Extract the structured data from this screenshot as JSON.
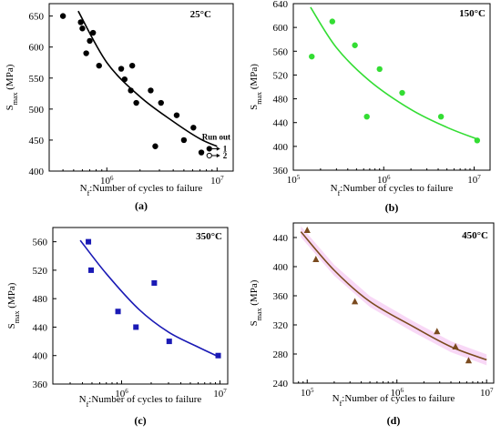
{
  "chart_data": [
    {
      "type": "scatter",
      "temperature": "25°C",
      "panel_label": "(a)",
      "xlabel": "N_f:Number of cycles to failure",
      "ylabel": "S_max (MPa)",
      "x_scale": "log",
      "xlim": [
        300000,
        14000000
      ],
      "ylim": [
        400,
        670
      ],
      "yticks": [
        400,
        450,
        500,
        550,
        600,
        650
      ],
      "xticks": [
        {
          "value": 1000000,
          "label": "10^6"
        },
        {
          "value": 10000000,
          "label": "10^7"
        }
      ],
      "marker_color": "#000000",
      "marker": "circle",
      "fit_color": "#000000",
      "points": [
        {
          "x": 400000,
          "y": 650
        },
        {
          "x": 580000,
          "y": 640
        },
        {
          "x": 600000,
          "y": 630
        },
        {
          "x": 650000,
          "y": 590
        },
        {
          "x": 700000,
          "y": 610
        },
        {
          "x": 750000,
          "y": 623
        },
        {
          "x": 850000,
          "y": 570
        },
        {
          "x": 1350000,
          "y": 565
        },
        {
          "x": 1450000,
          "y": 548
        },
        {
          "x": 1650000,
          "y": 530
        },
        {
          "x": 1700000,
          "y": 570
        },
        {
          "x": 1850000,
          "y": 510
        },
        {
          "x": 2500000,
          "y": 530
        },
        {
          "x": 2750000,
          "y": 440
        },
        {
          "x": 3100000,
          "y": 510
        },
        {
          "x": 4300000,
          "y": 490
        },
        {
          "x": 5000000,
          "y": 450
        },
        {
          "x": 6100000,
          "y": 470
        },
        {
          "x": 7200000,
          "y": 430
        }
      ],
      "fit": [
        {
          "x": 550000,
          "y": 658
        },
        {
          "x": 1000000,
          "y": 575
        },
        {
          "x": 2000000,
          "y": 520
        },
        {
          "x": 4000000,
          "y": 480
        },
        {
          "x": 7000000,
          "y": 452
        },
        {
          "x": 10000000,
          "y": 440
        }
      ],
      "run_out": {
        "label": "Run out",
        "x": 8500000,
        "items": [
          {
            "y": 436,
            "label": "1"
          },
          {
            "y": 425,
            "label": "2"
          }
        ]
      }
    },
    {
      "type": "scatter",
      "temperature": "150°C",
      "panel_label": "(b)",
      "xlabel": "N_f:Number of cycles to failure",
      "ylabel": "S_max (MPa)",
      "x_scale": "log",
      "xlim": [
        100000,
        15000000
      ],
      "ylim": [
        360,
        640
      ],
      "yticks": [
        360,
        400,
        440,
        480,
        520,
        560,
        600,
        640
      ],
      "xticks": [
        {
          "value": 100000,
          "label": "10^5"
        },
        {
          "value": 1000000,
          "label": "10^6"
        },
        {
          "value": 10000000,
          "label": "10^7"
        }
      ],
      "marker_color": "#33dd33",
      "marker": "circle",
      "fit_color": "#33dd33",
      "points": [
        {
          "x": 160000,
          "y": 551
        },
        {
          "x": 270000,
          "y": 610
        },
        {
          "x": 480000,
          "y": 570
        },
        {
          "x": 650000,
          "y": 450
        },
        {
          "x": 900000,
          "y": 530
        },
        {
          "x": 1600000,
          "y": 490
        },
        {
          "x": 4300000,
          "y": 450
        },
        {
          "x": 10800000,
          "y": 410
        }
      ],
      "fit": [
        {
          "x": 155000,
          "y": 634
        },
        {
          "x": 300000,
          "y": 566
        },
        {
          "x": 700000,
          "y": 510
        },
        {
          "x": 2000000,
          "y": 462
        },
        {
          "x": 5000000,
          "y": 432
        },
        {
          "x": 10500000,
          "y": 413
        }
      ]
    },
    {
      "type": "scatter",
      "temperature": "350°C",
      "panel_label": "(c)",
      "xlabel": "N_f:Number of cycles to failure",
      "ylabel": "S_max (MPa)",
      "x_scale": "log",
      "xlim": [
        200000,
        12000000
      ],
      "ylim": [
        360,
        580
      ],
      "yticks": [
        360,
        400,
        440,
        480,
        520,
        560
      ],
      "xticks": [
        {
          "value": 1000000,
          "label": "10^6"
        },
        {
          "value": 10000000,
          "label": "10^7"
        }
      ],
      "marker_color": "#1a1ab5",
      "marker": "square",
      "fit_color": "#1a1ab5",
      "points": [
        {
          "x": 460000,
          "y": 560
        },
        {
          "x": 490000,
          "y": 520
        },
        {
          "x": 920000,
          "y": 462
        },
        {
          "x": 1400000,
          "y": 440
        },
        {
          "x": 2150000,
          "y": 502
        },
        {
          "x": 3050000,
          "y": 420
        },
        {
          "x": 9600000,
          "y": 400
        }
      ],
      "fit": [
        {
          "x": 380000,
          "y": 562
        },
        {
          "x": 700000,
          "y": 515
        },
        {
          "x": 1500000,
          "y": 465
        },
        {
          "x": 3000000,
          "y": 433
        },
        {
          "x": 6000000,
          "y": 412
        },
        {
          "x": 9500000,
          "y": 399
        }
      ]
    },
    {
      "type": "scatter",
      "temperature": "450°C",
      "panel_label": "(d)",
      "xlabel": "N_f:Number of cycles to failure",
      "ylabel": "S_max (MPa)",
      "x_scale": "log",
      "xlim": [
        70000,
        12000000
      ],
      "ylim": [
        240,
        460
      ],
      "yticks": [
        240,
        280,
        320,
        360,
        400,
        440
      ],
      "xticks": [
        {
          "value": 100000,
          "label": "10^5"
        },
        {
          "value": 1000000,
          "label": "10^6"
        },
        {
          "value": 10000000,
          "label": "10^7"
        }
      ],
      "marker_color": "#7a4a1e",
      "marker": "triangle",
      "fit_color": "#7a4a1e",
      "band_color": "#f3b8ef",
      "points": [
        {
          "x": 100000,
          "y": 450
        },
        {
          "x": 125000,
          "y": 410
        },
        {
          "x": 340000,
          "y": 352
        },
        {
          "x": 2800000,
          "y": 311
        },
        {
          "x": 4500000,
          "y": 290
        },
        {
          "x": 6300000,
          "y": 271
        }
      ],
      "fit": [
        {
          "x": 85000,
          "y": 448
        },
        {
          "x": 200000,
          "y": 395
        },
        {
          "x": 500000,
          "y": 352
        },
        {
          "x": 1500000,
          "y": 318
        },
        {
          "x": 4000000,
          "y": 290
        },
        {
          "x": 10000000,
          "y": 272
        }
      ]
    }
  ]
}
